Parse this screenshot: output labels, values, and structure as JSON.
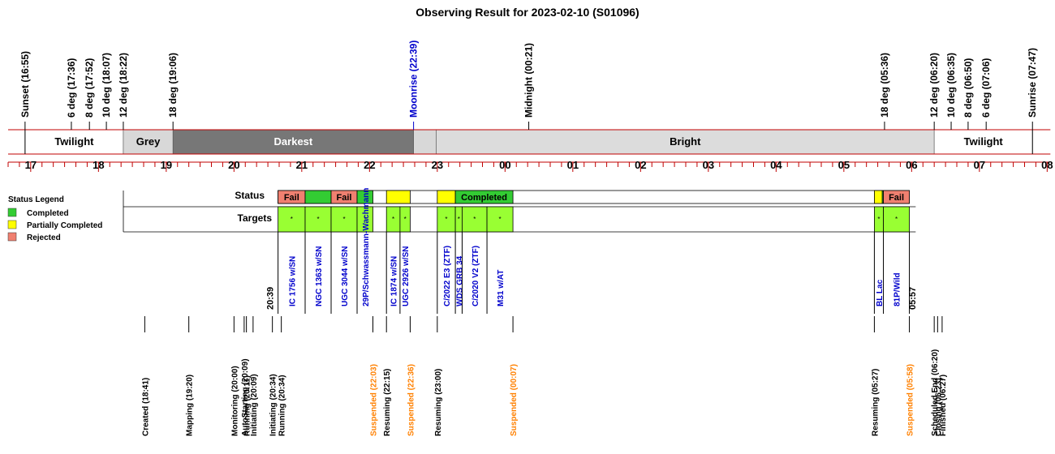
{
  "chart_data": {
    "type": "timeline",
    "title": "Observing Result for 2023-02-10 (S01096)",
    "x_axis": {
      "range": [
        "16:40",
        "08:00"
      ],
      "hour_labels": [
        "17",
        "18",
        "19",
        "20",
        "21",
        "22",
        "23",
        "00",
        "01",
        "02",
        "03",
        "04",
        "05",
        "06",
        "07",
        "08"
      ]
    },
    "colors": {
      "twilight": "#ffffff",
      "grey": "#d8d8d8",
      "darkest": "#777777",
      "bright": "#dcdcdc",
      "frame": "#c00000",
      "completed": "#33cc33",
      "partial": "#ffff00",
      "rejected": "#f08070",
      "target": "#99ff33",
      "target_text": "#0000cc",
      "event_orange": "#ff8000",
      "moonrise": "#0000cc"
    },
    "sky_events": [
      {
        "label": "Sunset (16:55)",
        "time": "16:55"
      },
      {
        "label": "6 deg (17:36)",
        "time": "17:36"
      },
      {
        "label": "8 deg (17:52)",
        "time": "17:52"
      },
      {
        "label": "10 deg (18:07)",
        "time": "18:07"
      },
      {
        "label": "12 deg (18:22)",
        "time": "18:22"
      },
      {
        "label": "18 deg (19:06)",
        "time": "19:06"
      },
      {
        "label": "Moonrise (22:39)",
        "time": "22:39",
        "color": "moonrise"
      },
      {
        "label": "Midnight (00:21)",
        "time": "00:21"
      },
      {
        "label": "18 deg (05:36)",
        "time": "05:36"
      },
      {
        "label": "12 deg (06:20)",
        "time": "06:20"
      },
      {
        "label": "10 deg (06:35)",
        "time": "06:35"
      },
      {
        "label": "8 deg (06:50)",
        "time": "06:50"
      },
      {
        "label": "6 deg (07:06)",
        "time": "07:06"
      },
      {
        "label": "Sunrise (07:47)",
        "time": "07:47"
      }
    ],
    "sky_periods": [
      {
        "label": "Twilight",
        "start": "16:55",
        "end": "18:22",
        "color": "twilight",
        "text_color": "#000000"
      },
      {
        "label": "Grey",
        "start": "18:22",
        "end": "19:06",
        "color": "grey",
        "text_color": "#000000"
      },
      {
        "label": "Darkest",
        "start": "19:06",
        "end": "22:39",
        "color": "darkest",
        "text_color": "#ffffff"
      },
      {
        "label": "",
        "start": "22:39",
        "end": "22:59",
        "color": "grey",
        "text_color": "#000000"
      },
      {
        "label": "Bright",
        "start": "22:59",
        "end": "06:20",
        "color": "bright",
        "text_color": "#000000"
      },
      {
        "label": "Twilight",
        "start": "06:20",
        "end": "07:47",
        "color": "twilight",
        "text_color": "#000000"
      }
    ],
    "legend": {
      "title": "Status Legend",
      "items": [
        {
          "label": "Completed",
          "color": "completed"
        },
        {
          "label": "Partially Completed",
          "color": "partial"
        },
        {
          "label": "Rejected",
          "color": "rejected"
        }
      ]
    },
    "rows": {
      "status": "Status",
      "targets": "Targets"
    },
    "status_blocks": [
      {
        "start": "20:39",
        "end": "21:03",
        "status": "rejected",
        "label": "Fail"
      },
      {
        "start": "21:03",
        "end": "21:26",
        "status": "completed",
        "label": ""
      },
      {
        "start": "21:26",
        "end": "21:49",
        "status": "rejected",
        "label": "Fail"
      },
      {
        "start": "21:49",
        "end": "22:03",
        "status": "completed",
        "label": ""
      },
      {
        "start": "22:03",
        "end": "22:15",
        "status": "none",
        "label": ""
      },
      {
        "start": "22:15",
        "end": "22:36",
        "status": "partial",
        "label": ""
      },
      {
        "start": "22:36",
        "end": "23:00",
        "status": "none",
        "label": ""
      },
      {
        "start": "23:00",
        "end": "23:16",
        "status": "partial",
        "label": ""
      },
      {
        "start": "23:16",
        "end": "00:07",
        "status": "completed",
        "label": "Completed"
      },
      {
        "start": "00:07",
        "end": "05:27",
        "status": "none",
        "label": ""
      },
      {
        "start": "05:27",
        "end": "05:34",
        "status": "partial",
        "label": ""
      },
      {
        "start": "05:34",
        "end": "05:35",
        "status": "completed",
        "label": ""
      },
      {
        "start": "05:35",
        "end": "05:58",
        "status": "rejected",
        "label": "Fail"
      }
    ],
    "target_blocks": [
      {
        "start": "20:39",
        "end": "21:03",
        "label": "IC 1756 w/SN"
      },
      {
        "start": "21:03",
        "end": "21:26",
        "label": "NGC 1363 w/SN"
      },
      {
        "start": "21:26",
        "end": "21:49",
        "label": "UGC 3044 w/SN"
      },
      {
        "start": "21:49",
        "end": "22:03",
        "label": "29P/Schwassmann-Wachmann"
      },
      {
        "start": "22:15",
        "end": "22:27",
        "label": "IC 1874 w/SN"
      },
      {
        "start": "22:27",
        "end": "22:36",
        "label": "UGC 2926 w/SN"
      },
      {
        "start": "23:00",
        "end": "23:16",
        "label": "C/2022 E3 (ZTF)"
      },
      {
        "start": "23:16",
        "end": "23:22",
        "label": "WDS GRB 34"
      },
      {
        "start": "23:22",
        "end": "23:44",
        "label": "C/2020 V2 (ZTF)"
      },
      {
        "start": "23:44",
        "end": "00:07",
        "label": "M31 w/AT"
      },
      {
        "start": "05:27",
        "end": "05:35",
        "label": "BL Lac"
      },
      {
        "start": "05:35",
        "end": "05:58",
        "label": "81P/Wild"
      }
    ],
    "range_labels": [
      {
        "label": "20:39",
        "time": "20:39"
      },
      {
        "label": "05:57",
        "time": "05:57"
      }
    ],
    "log_events": [
      {
        "label": "Created (18:41)",
        "time": "18:41"
      },
      {
        "label": "Mapping (19:20)",
        "time": "19:20"
      },
      {
        "label": "Monitoring (20:00)",
        "time": "20:00"
      },
      {
        "label": "AutoStarting (20:09)",
        "time": "20:09"
      },
      {
        "label": "Initiating (20:09)",
        "time": "20:09"
      },
      {
        "label": "Running (20:11)",
        "time": "20:11"
      },
      {
        "label": "Initiating (20:34)",
        "time": "20:34"
      },
      {
        "label": "Running (20:34)",
        "time": "20:34"
      },
      {
        "label": "Suspended (22:03)",
        "time": "22:03",
        "color": "event_orange"
      },
      {
        "label": "Resuming (22:15)",
        "time": "22:15"
      },
      {
        "label": "Suspended (22:36)",
        "time": "22:36",
        "color": "event_orange"
      },
      {
        "label": "Resuming (23:00)",
        "time": "23:00"
      },
      {
        "label": "Suspended (00:07)",
        "time": "00:07",
        "color": "event_orange"
      },
      {
        "label": "Resuming (05:27)",
        "time": "05:27"
      },
      {
        "label": "Suspended (05:58)",
        "time": "05:58",
        "color": "event_orange"
      },
      {
        "label": "Scheduled End (06:20)",
        "time": "06:20"
      },
      {
        "label": "Closing (06:23)",
        "time": "06:23"
      },
      {
        "label": "Finished (06:27)",
        "time": "06:27"
      }
    ]
  }
}
